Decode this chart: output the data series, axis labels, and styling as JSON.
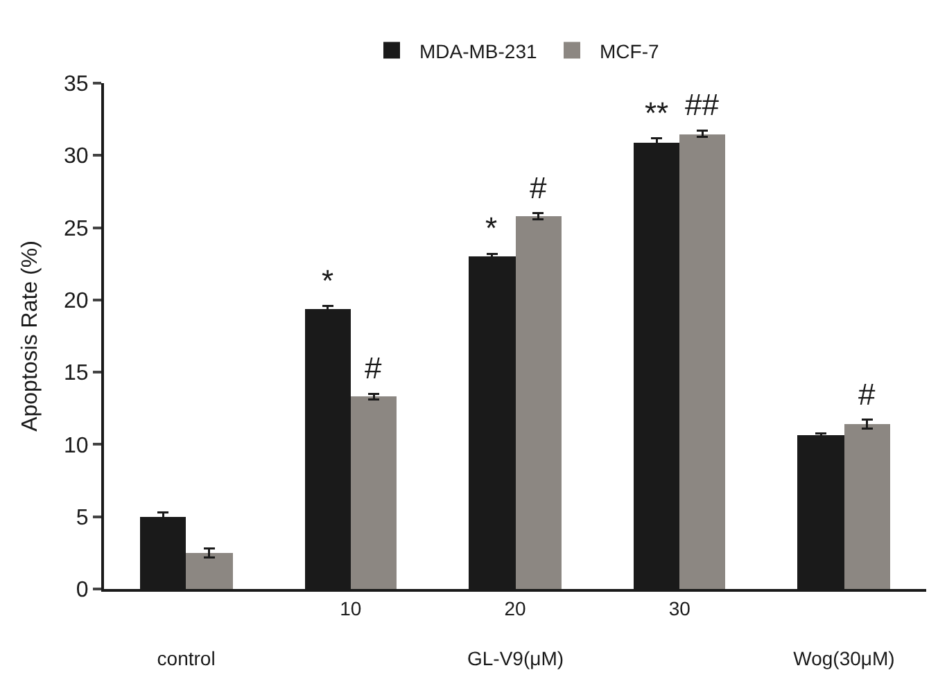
{
  "chart_data": {
    "type": "bar",
    "ylabel": "Apoptosis Rate (%)",
    "categories": [
      "control",
      "10",
      "20",
      "30",
      "Wog(30μM)"
    ],
    "series": [
      {
        "name": "MDA-MB-231",
        "color": "#1a1a1a",
        "values": [
          5.0,
          19.4,
          23.0,
          30.9,
          10.6
        ],
        "errors": [
          0.3,
          0.2,
          0.2,
          0.3,
          0.15
        ],
        "value_labels": [
          null,
          "*",
          "*",
          "**",
          null
        ]
      },
      {
        "name": "MCF-7",
        "color": "#8c8782",
        "values": [
          2.5,
          13.3,
          25.8,
          31.5,
          11.4
        ],
        "errors": [
          0.3,
          0.2,
          0.2,
          0.2,
          0.3
        ],
        "value_labels": [
          null,
          "#",
          "#",
          "##",
          "#"
        ]
      }
    ],
    "annotations": [
      "GL-V9(μM)"
    ],
    "ylim": [
      0,
      35
    ],
    "yticks": [
      0,
      5,
      10,
      15,
      20,
      25,
      30,
      35
    ],
    "legend": "top"
  }
}
